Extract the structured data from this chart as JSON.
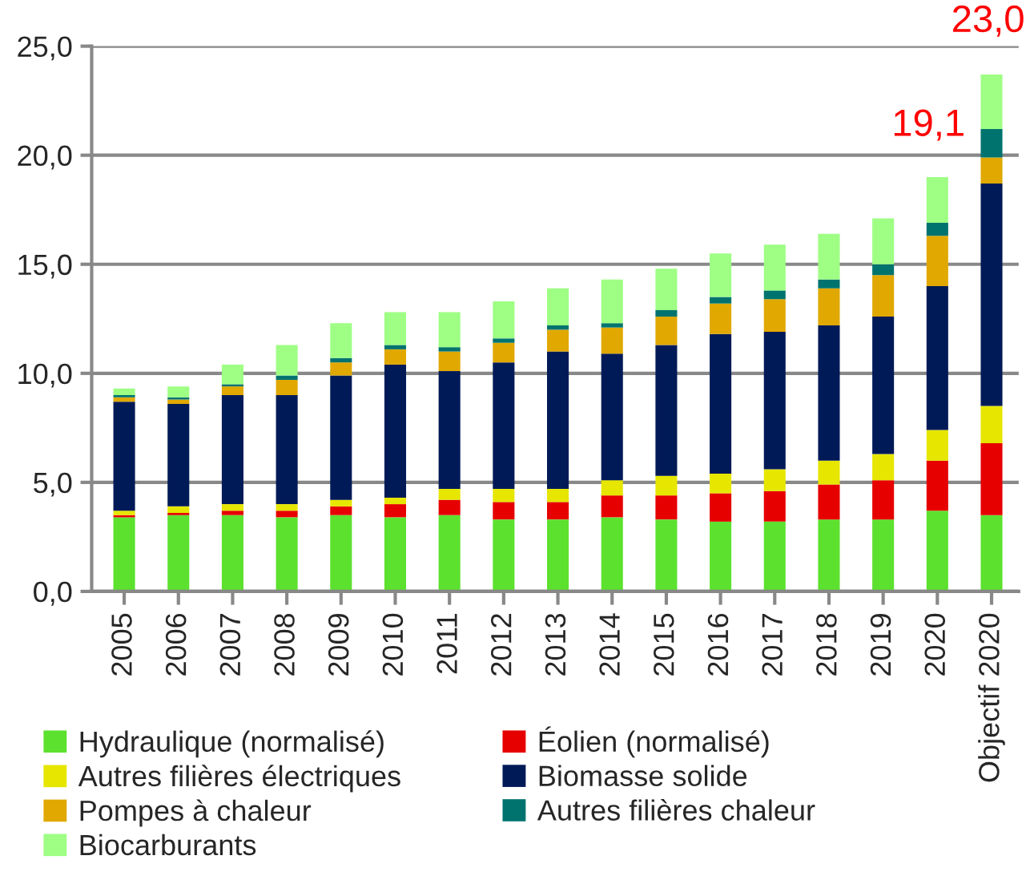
{
  "chart_data": {
    "type": "bar",
    "stacked": true,
    "categories": [
      "2005",
      "2006",
      "2007",
      "2008",
      "2009",
      "2010",
      "2011",
      "2012",
      "2013",
      "2014",
      "2015",
      "2016",
      "2017",
      "2018",
      "2019",
      "2020",
      "Objectif 2020"
    ],
    "series": [
      {
        "name": "Hydraulique (normalisé)",
        "color": "#5ce12e",
        "values": [
          3.4,
          3.5,
          3.5,
          3.4,
          3.5,
          3.4,
          3.5,
          3.3,
          3.3,
          3.4,
          3.3,
          3.2,
          3.2,
          3.3,
          3.3,
          3.7,
          3.5
        ]
      },
      {
        "name": "Éolien (normalisé)",
        "color": "#e60000",
        "values": [
          0.1,
          0.1,
          0.2,
          0.3,
          0.4,
          0.6,
          0.7,
          0.8,
          0.8,
          1.0,
          1.1,
          1.3,
          1.4,
          1.6,
          1.8,
          2.3,
          3.3
        ]
      },
      {
        "name": "Autres filières électriques",
        "color": "#e6e600",
        "values": [
          0.2,
          0.3,
          0.3,
          0.3,
          0.3,
          0.3,
          0.5,
          0.6,
          0.6,
          0.7,
          0.9,
          0.9,
          1.0,
          1.1,
          1.2,
          1.4,
          1.7
        ]
      },
      {
        "name": "Biomasse solide",
        "color": "#001a57",
        "values": [
          5.0,
          4.7,
          5.0,
          5.0,
          5.7,
          6.1,
          5.4,
          5.8,
          6.3,
          5.8,
          6.0,
          6.4,
          6.3,
          6.2,
          6.3,
          6.6,
          10.2
        ]
      },
      {
        "name": "Pompes à chaleur",
        "color": "#e0a800",
        "values": [
          0.2,
          0.2,
          0.4,
          0.7,
          0.6,
          0.7,
          0.9,
          0.9,
          1.0,
          1.2,
          1.3,
          1.4,
          1.5,
          1.7,
          1.9,
          2.3,
          1.2
        ]
      },
      {
        "name": "Autres filières chaleur",
        "color": "#00736e",
        "values": [
          0.1,
          0.1,
          0.1,
          0.2,
          0.2,
          0.2,
          0.2,
          0.2,
          0.2,
          0.2,
          0.3,
          0.3,
          0.4,
          0.4,
          0.5,
          0.6,
          1.3
        ]
      },
      {
        "name": "Biocarburants",
        "color": "#9eff84",
        "values": [
          0.3,
          0.5,
          0.9,
          1.4,
          1.6,
          1.5,
          1.6,
          1.7,
          1.7,
          2.0,
          1.9,
          2.0,
          2.1,
          2.1,
          2.1,
          2.1,
          2.5
        ]
      }
    ],
    "ylim": [
      0,
      25
    ],
    "yticks": [
      {
        "value": 0,
        "label": "0,0"
      },
      {
        "value": 5,
        "label": "5,0"
      },
      {
        "value": 10,
        "label": "10,0"
      },
      {
        "value": 15,
        "label": "15,0"
      },
      {
        "value": 20,
        "label": "20,0"
      },
      {
        "value": 25,
        "label": "25,0"
      }
    ],
    "grid": "y",
    "legend": "bottom",
    "annotations": [
      {
        "text": "19,1",
        "x": "2020",
        "y": 19.1
      },
      "23,0"
    ]
  }
}
